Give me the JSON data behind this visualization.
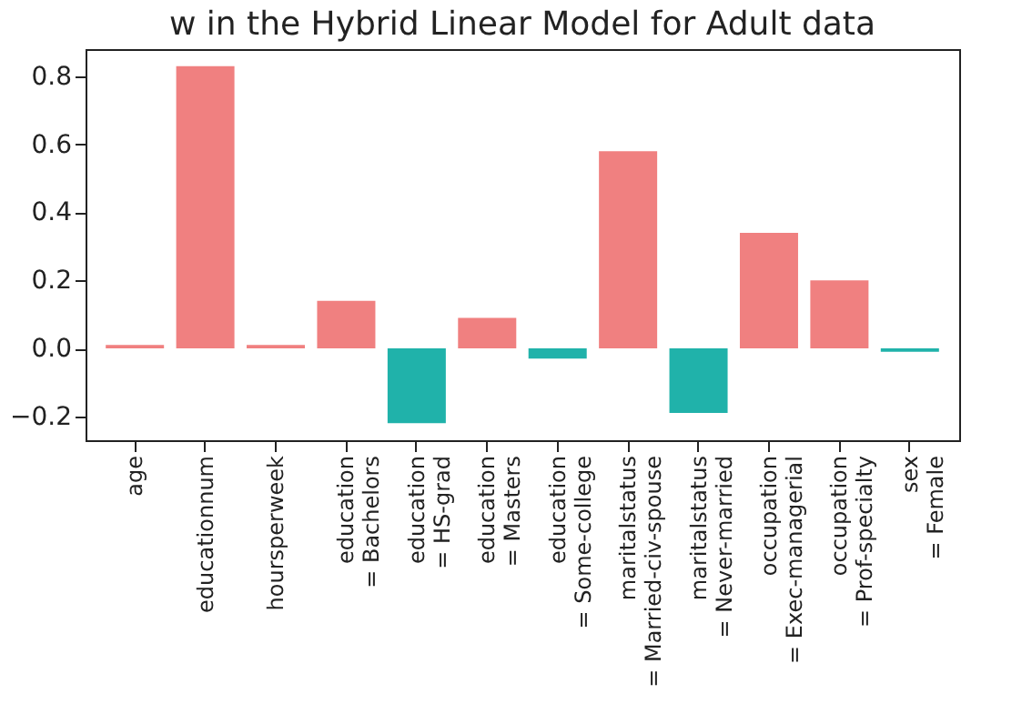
{
  "chart_data": {
    "type": "bar",
    "title": "w in the Hybrid Linear Model for Adult data",
    "categories": [
      "age",
      "educationnum",
      "hoursperweek",
      "education\n= Bachelors",
      "education\n= HS-grad",
      "education\n= Masters",
      "education\n= Some-college",
      "maritalstatus\n= Married-civ-spouse",
      "maritalstatus\n= Never-married",
      "occupation\n= Exec-managerial",
      "occupation\n= Prof-specialty",
      "sex\n= Female"
    ],
    "values": [
      0.01,
      0.83,
      0.01,
      0.14,
      -0.22,
      0.09,
      -0.03,
      0.58,
      -0.19,
      0.34,
      0.2,
      -0.01
    ],
    "colors": [
      "#f08080",
      "#f08080",
      "#f08080",
      "#f08080",
      "#20b2aa",
      "#f08080",
      "#20b2aa",
      "#f08080",
      "#20b2aa",
      "#f08080",
      "#f08080",
      "#20b2aa"
    ],
    "ylim": [
      -0.27,
      0.88
    ],
    "yticks": [
      {
        "value": -0.2,
        "label": "−0.2"
      },
      {
        "value": 0,
        "label": "0.0"
      },
      {
        "value": 0.2,
        "label": "0.2"
      },
      {
        "value": 0.4,
        "label": "0.4"
      },
      {
        "value": 0.6,
        "label": "0.6"
      },
      {
        "value": 0.8,
        "label": "0.8"
      }
    ],
    "grid": false
  }
}
